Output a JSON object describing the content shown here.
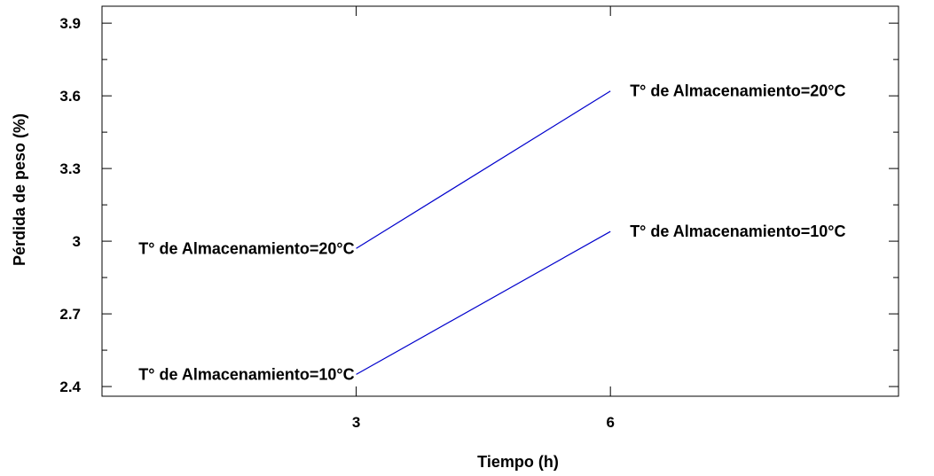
{
  "chart_data": {
    "type": "line",
    "title": "",
    "xlabel": "Tiempo (h)",
    "ylabel": "Pérdida de peso (%)",
    "xlim": [
      0,
      9.4
    ],
    "ylim": [
      2.36,
      3.97
    ],
    "x_ticks": [
      3,
      6
    ],
    "x_tick_labels": [
      "3",
      "6"
    ],
    "y_ticks": [
      2.4,
      2.7,
      3,
      3.3,
      3.6,
      3.9
    ],
    "y_tick_labels": [
      "2.4",
      "2.7",
      "3",
      "3.3",
      "3.6",
      "3.9"
    ],
    "grid": false,
    "legend": "none",
    "line_color": "#0000cc",
    "series": [
      {
        "x": [
          3,
          6
        ],
        "y": [
          2.97,
          3.62
        ],
        "start_label": "T° de Almacenamiento=20°C",
        "end_label": "T° de Almacenamiento=20°C"
      },
      {
        "x": [
          3,
          6
        ],
        "y": [
          2.45,
          3.04
        ],
        "start_label": "T° de Almacenamiento=10°C",
        "end_label": "T° de Almacenamiento=10°C"
      }
    ]
  }
}
